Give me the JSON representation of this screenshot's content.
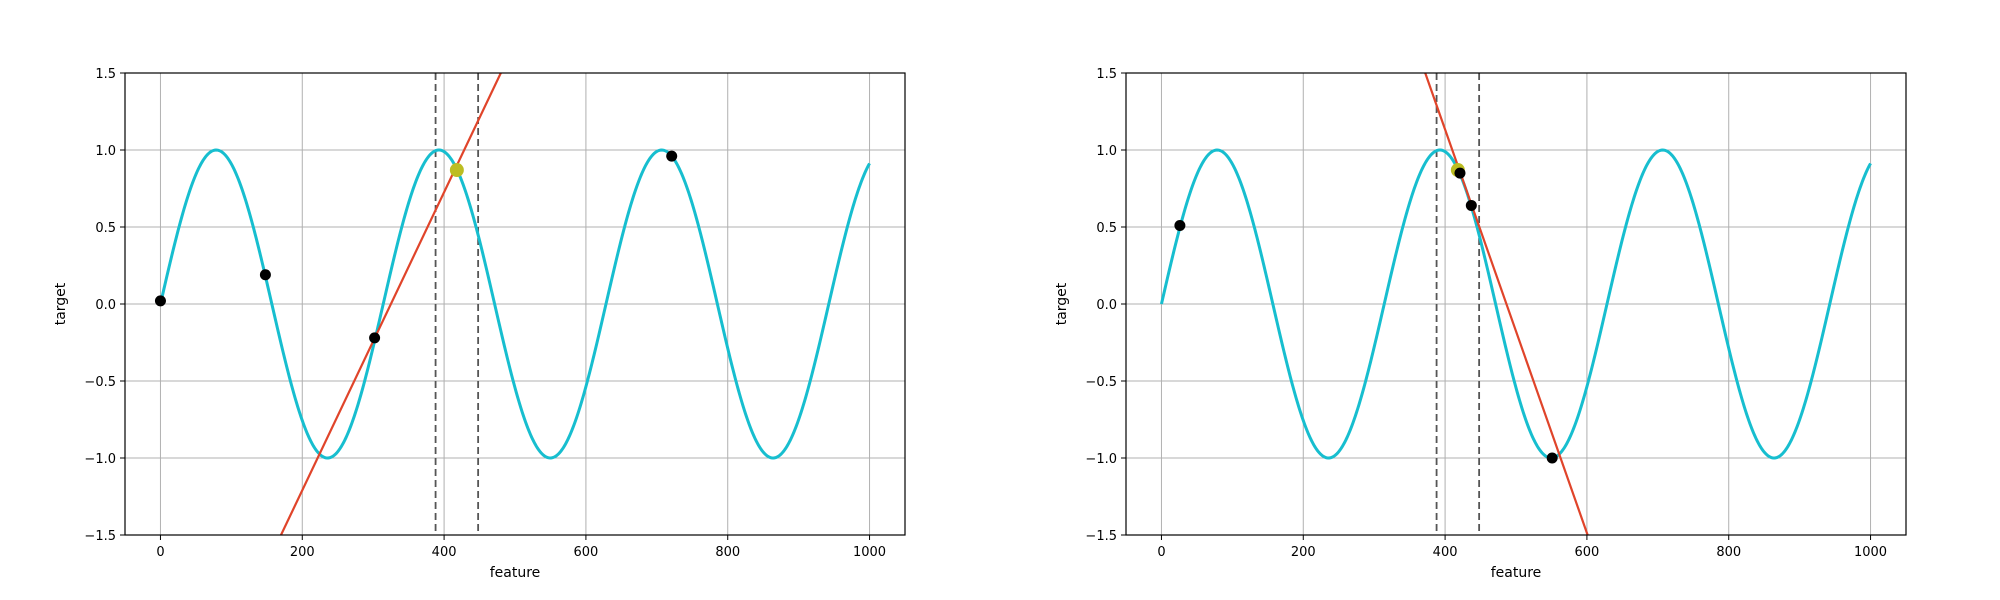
{
  "colors": {
    "sine": "#17becf",
    "fit_line": "#e0442a",
    "query_point": "#bcbd22",
    "neighbor_point": "#000000",
    "grid": "#b0b0b0",
    "window_line": "#555555"
  },
  "chart_data": [
    {
      "type": "line",
      "xlabel": "feature",
      "ylabel": "target",
      "xlim": [
        -50,
        1050
      ],
      "ylim": [
        -1.5,
        1.5
      ],
      "xticks": [
        0,
        200,
        400,
        600,
        800,
        1000
      ],
      "yticks": [
        -1.5,
        -1.0,
        -0.5,
        0.0,
        0.5,
        1.0,
        1.5
      ],
      "xtick_labels": [
        "0",
        "200",
        "400",
        "600",
        "800",
        "1000"
      ],
      "ytick_labels": [
        "−1.5",
        "−1.0",
        "−0.5",
        "0.0",
        "0.5",
        "1.0",
        "1.5"
      ],
      "grid": true,
      "curve": {
        "function": "sin",
        "period": 314.16,
        "x_range": [
          0,
          1000
        ]
      },
      "window": [
        388,
        448
      ],
      "query_point": {
        "x": 418,
        "y": 0.87
      },
      "sample_points": [
        {
          "x": 0,
          "y": 0.02
        },
        {
          "x": 148,
          "y": 0.19
        },
        {
          "x": 302,
          "y": -0.22
        },
        {
          "x": 721,
          "y": 0.96
        }
      ],
      "fit_line": {
        "x": [
          170,
          480
        ],
        "y": [
          -1.5,
          1.5
        ]
      }
    },
    {
      "type": "line",
      "xlabel": "feature",
      "ylabel": "target",
      "xlim": [
        -50,
        1050
      ],
      "ylim": [
        -1.5,
        1.5
      ],
      "xticks": [
        0,
        200,
        400,
        600,
        800,
        1000
      ],
      "yticks": [
        -1.5,
        -1.0,
        -0.5,
        0.0,
        0.5,
        1.0,
        1.5
      ],
      "xtick_labels": [
        "0",
        "200",
        "400",
        "600",
        "800",
        "1000"
      ],
      "ytick_labels": [
        "−1.5",
        "−1.0",
        "−0.5",
        "0.0",
        "0.5",
        "1.0",
        "1.5"
      ],
      "grid": true,
      "curve": {
        "function": "sin",
        "period": 314.16,
        "x_range": [
          0,
          1000
        ]
      },
      "window": [
        388,
        448
      ],
      "query_point": {
        "x": 418,
        "y": 0.87
      },
      "sample_points": [
        {
          "x": 26,
          "y": 0.51
        },
        {
          "x": 421,
          "y": 0.85
        },
        {
          "x": 437,
          "y": 0.64
        },
        {
          "x": 551,
          "y": -1.0
        }
      ],
      "fit_line": {
        "x": [
          372,
          601
        ],
        "y": [
          1.5,
          -1.5
        ]
      }
    }
  ]
}
